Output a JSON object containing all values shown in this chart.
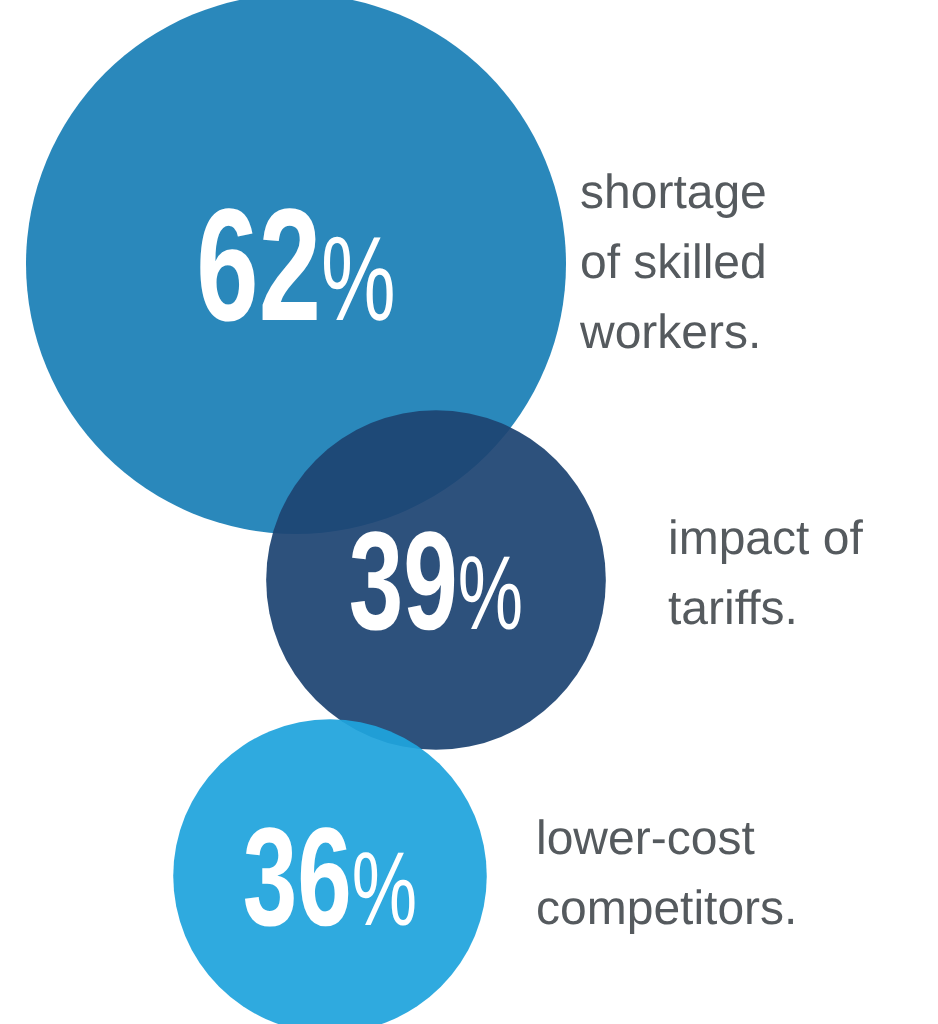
{
  "chart_data": {
    "type": "other",
    "categories": [
      "shortage of skilled workers.",
      "impact of tariffs.",
      "lower-cost competitors."
    ],
    "values": [
      62,
      39,
      36
    ],
    "value_labels": [
      "62%",
      "39%",
      "36%"
    ],
    "colors": [
      "#1a7fb6",
      "#1d4472",
      "#1fa4dd"
    ]
  }
}
